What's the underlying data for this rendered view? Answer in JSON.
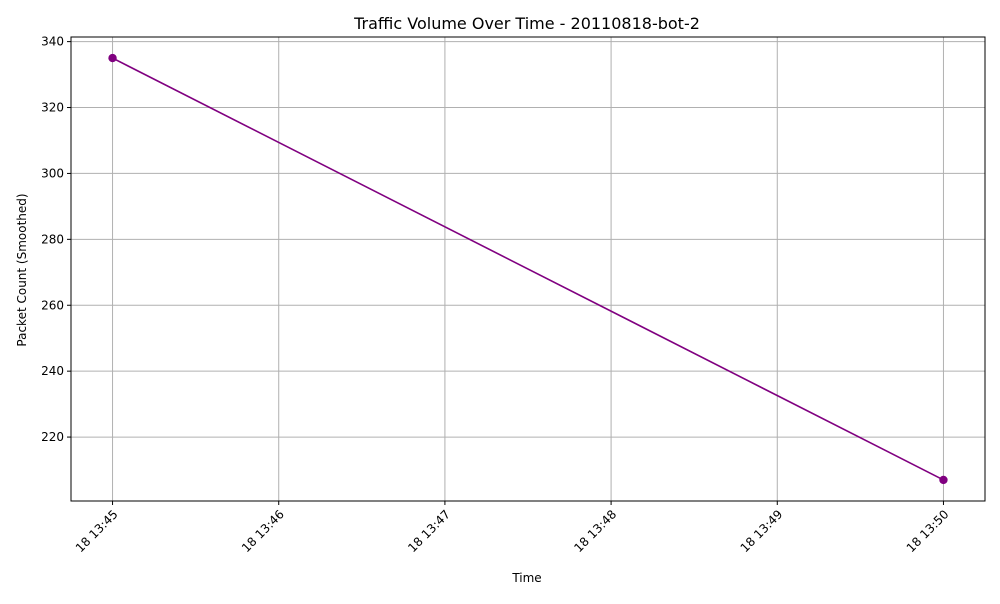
{
  "chart_data": {
    "type": "line",
    "title": "Traffic Volume Over Time - 20110818-bot-2",
    "xlabel": "Time",
    "ylabel": "Packet Count (Smoothed)",
    "x_ticks": [
      "18 13:45",
      "18 13:46",
      "18 13:47",
      "18 13:48",
      "18 13:49",
      "18 13:50"
    ],
    "y_ticks": [
      220,
      240,
      260,
      280,
      300,
      320,
      340
    ],
    "x_range": [
      "2011-08-18 13:44:45",
      "2011-08-18 13:50:15"
    ],
    "ylim": [
      200.6,
      341.4
    ],
    "grid": true,
    "line_color": "#800080",
    "marker": "circle",
    "series": [
      {
        "x": [
          "2011-08-18 13:45:00",
          "2011-08-18 13:50:00"
        ],
        "y": [
          335,
          207
        ]
      }
    ]
  }
}
